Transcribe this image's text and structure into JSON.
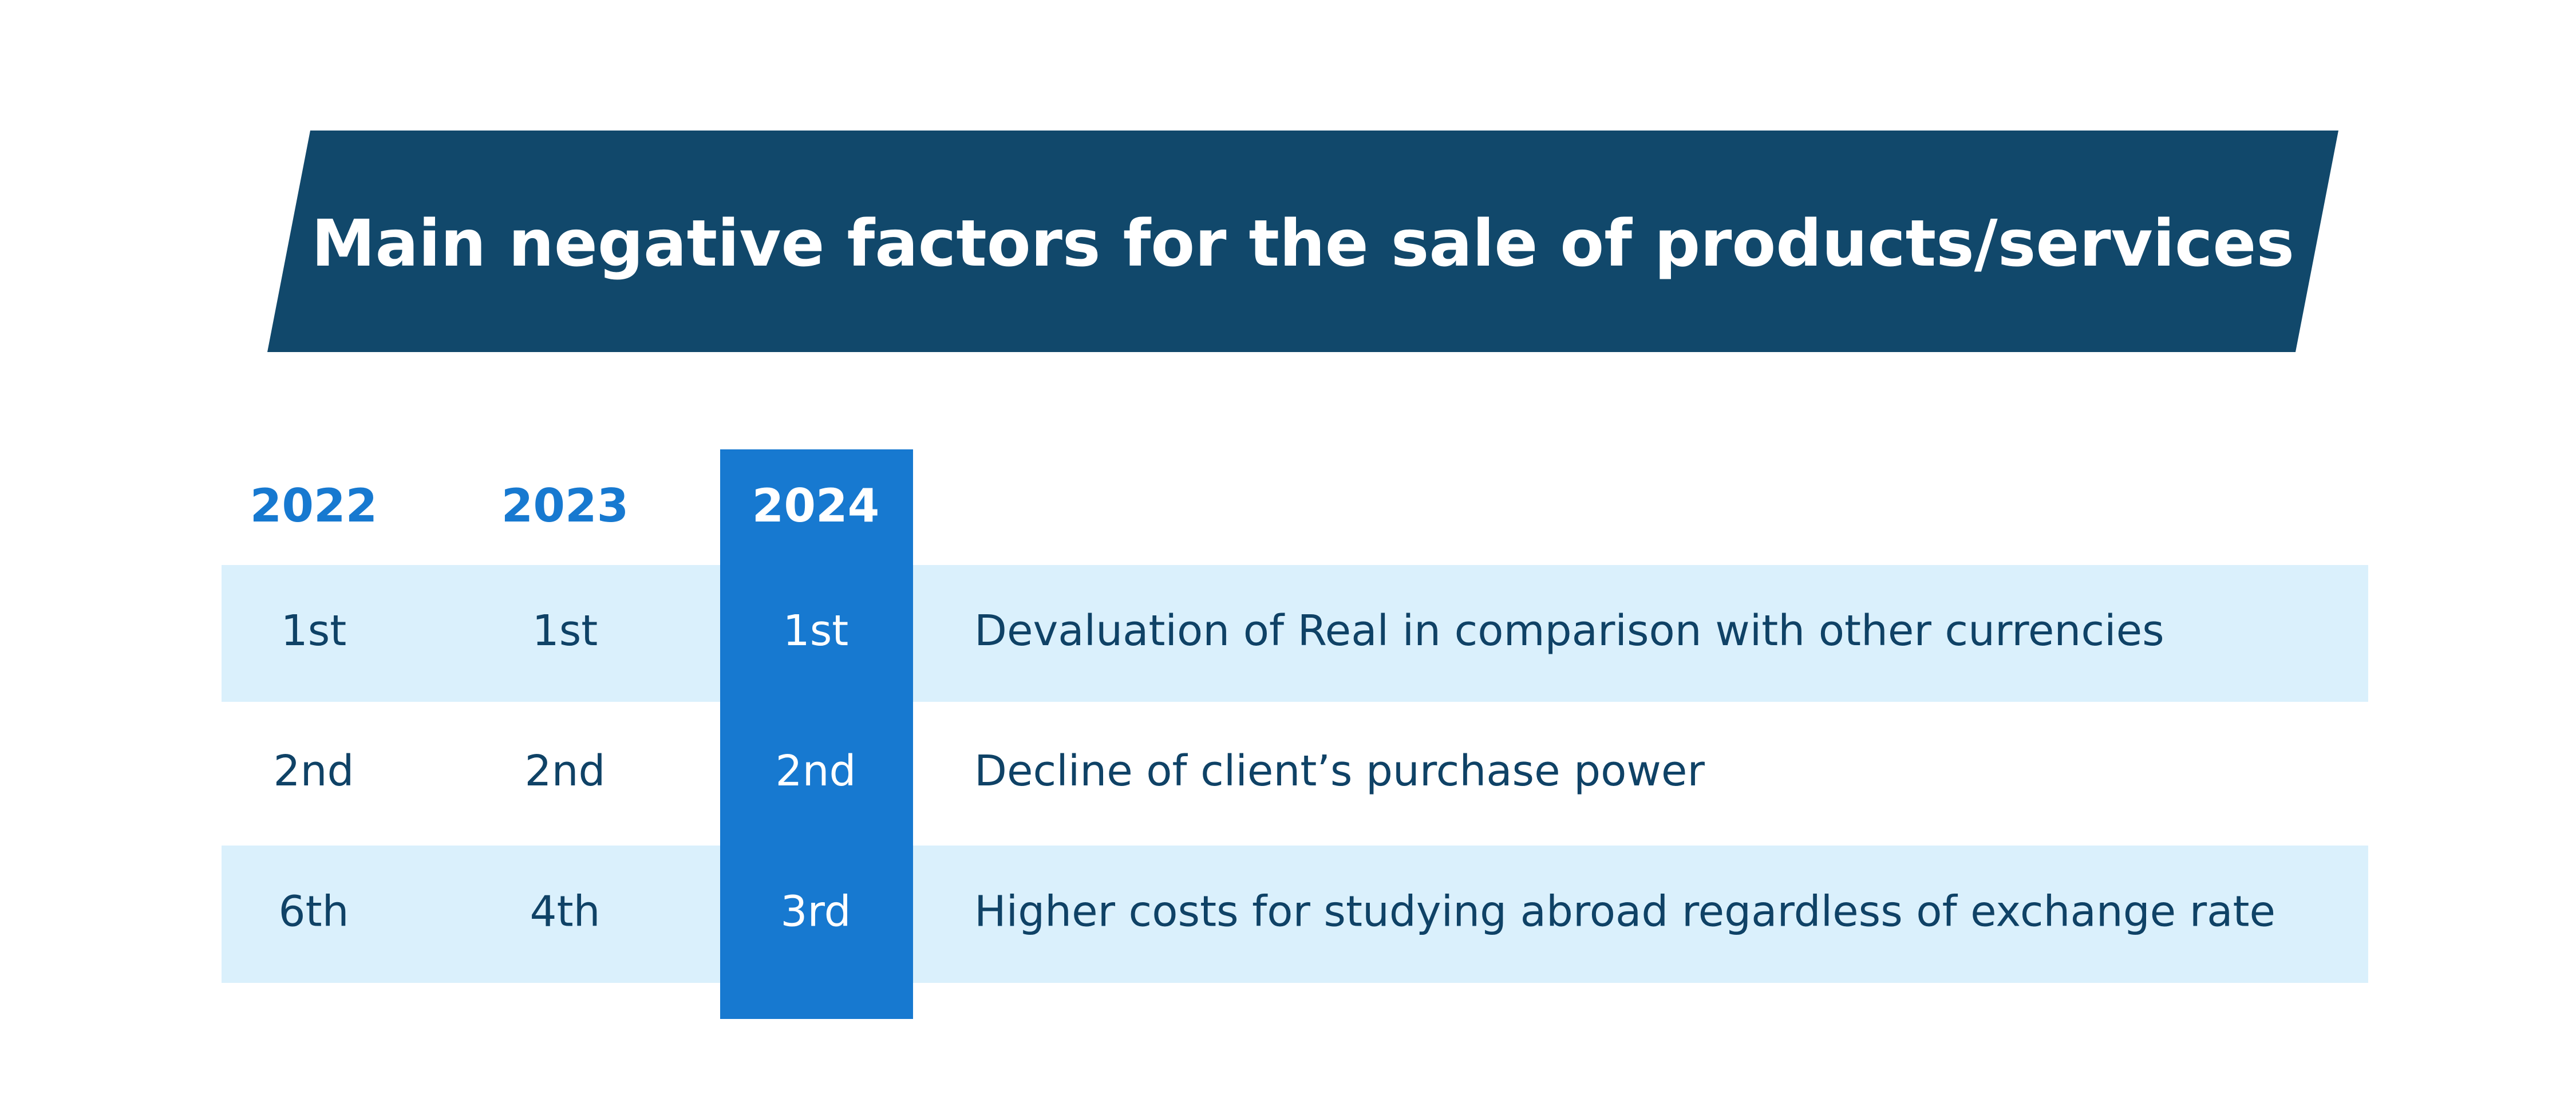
{
  "title": "Main negative factors for the sale of products/services",
  "table": {
    "headers": [
      "2022",
      "2023",
      "2024"
    ],
    "rows": [
      [
        "1st",
        "1st",
        "1st",
        "Devaluation of Real in comparison with other currencies"
      ],
      [
        "2nd",
        "2nd",
        "2nd",
        "Decline of client’s purchase power"
      ],
      [
        "6th",
        "4th",
        "3rd",
        "Higher costs for studying abroad regardless of exchange rate"
      ]
    ]
  }
}
